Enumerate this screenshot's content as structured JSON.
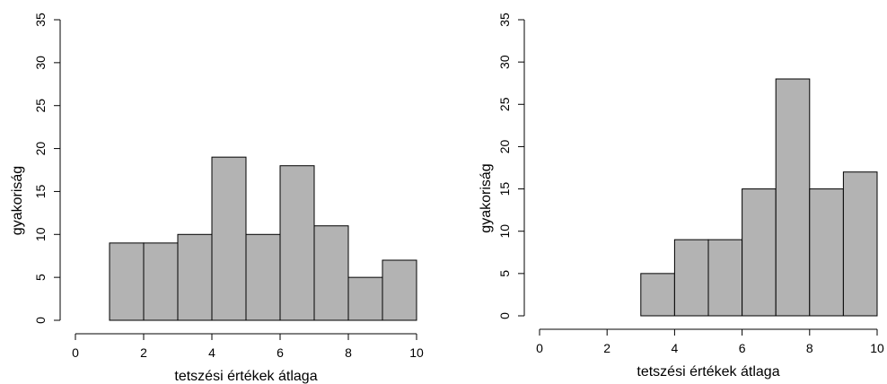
{
  "chart_data": [
    {
      "type": "bar",
      "subtype": "histogram",
      "title": "",
      "xlabel": "tetszési értékek átlaga",
      "ylabel": "gyakoriság",
      "xlim": [
        0,
        10
      ],
      "ylim": [
        0,
        35
      ],
      "xticks": [
        0,
        2,
        4,
        6,
        8,
        10
      ],
      "yticks": [
        0,
        5,
        10,
        15,
        20,
        25,
        30,
        35
      ],
      "bins": [
        {
          "start": 1,
          "end": 2,
          "value": 9
        },
        {
          "start": 2,
          "end": 3,
          "value": 9
        },
        {
          "start": 3,
          "end": 4,
          "value": 10
        },
        {
          "start": 4,
          "end": 5,
          "value": 19
        },
        {
          "start": 5,
          "end": 6,
          "value": 10
        },
        {
          "start": 6,
          "end": 7,
          "value": 18
        },
        {
          "start": 7,
          "end": 8,
          "value": 11
        },
        {
          "start": 8,
          "end": 9,
          "value": 5
        },
        {
          "start": 9,
          "end": 10,
          "value": 7
        }
      ],
      "bar_color": "#b3b3b3",
      "grid": false
    },
    {
      "type": "bar",
      "subtype": "histogram",
      "title": "",
      "xlabel": "tetszési értékek átlaga",
      "ylabel": "gyakoriság",
      "xlim": [
        0,
        10
      ],
      "ylim": [
        0,
        35
      ],
      "xticks": [
        0,
        2,
        4,
        6,
        8,
        10
      ],
      "yticks": [
        0,
        5,
        10,
        15,
        20,
        25,
        30,
        35
      ],
      "bins": [
        {
          "start": 3,
          "end": 4,
          "value": 5
        },
        {
          "start": 4,
          "end": 5,
          "value": 9
        },
        {
          "start": 5,
          "end": 6,
          "value": 9
        },
        {
          "start": 6,
          "end": 7,
          "value": 15
        },
        {
          "start": 7,
          "end": 8,
          "value": 28
        },
        {
          "start": 8,
          "end": 9,
          "value": 15
        },
        {
          "start": 9,
          "end": 10,
          "value": 17
        }
      ],
      "bar_color": "#b3b3b3",
      "grid": false
    }
  ]
}
